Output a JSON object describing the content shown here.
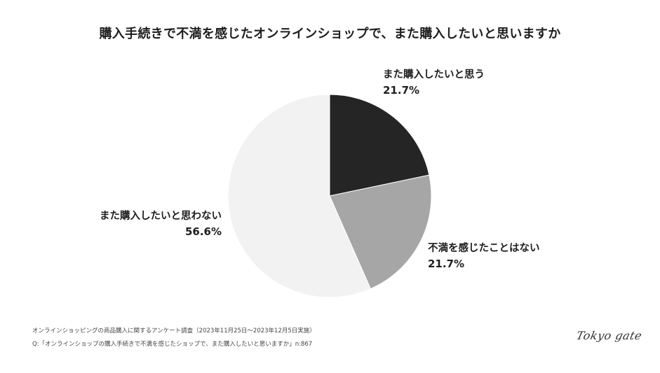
{
  "title": "購入手続きで不満を感じたオンラインショップで、また購入したいと思いますか",
  "chart_data": {
    "type": "pie",
    "title": "購入手続きで不満を感じたオンラインショップで、また購入したいと思いますか",
    "start_angle": "12 o'clock",
    "direction": "clockwise",
    "categories": [
      "また購入したいと思う",
      "不満を感じたことはない",
      "また購入したいと思わない"
    ],
    "values": [
      21.7,
      21.7,
      56.6
    ],
    "unit": "%",
    "colors": [
      "#252525",
      "#a6a6a6",
      "#f2f2f2"
    ],
    "n": 867,
    "legend": "none (direct labels)"
  },
  "labels": [
    {
      "name": "また購入したいと思う",
      "pct": "21.7%"
    },
    {
      "name": "不満を感じたことはない",
      "pct": "21.7%"
    },
    {
      "name": "また購入したいと思わない",
      "pct": "56.6%"
    }
  ],
  "footnotes": {
    "survey": "オンラインショッピングの商品購入に関するアンケート調査（2023年11月25日〜2023年12月5日実施）",
    "question": "Q:「オンラインショップの購入手続きで不満を感じたショップで、また購入したいと思いますか」n:867"
  },
  "logo": "Tokyo gate"
}
